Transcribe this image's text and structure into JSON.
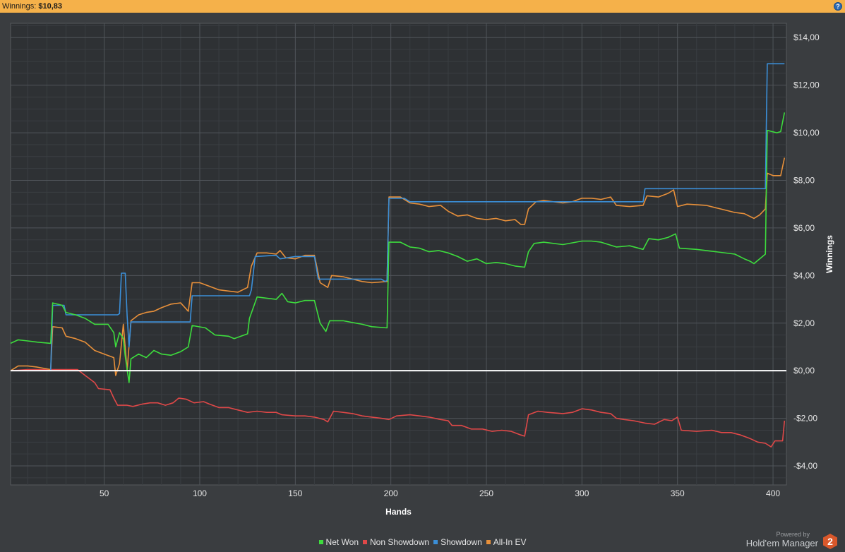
{
  "header": {
    "winnings_label": "Winnings:",
    "winnings_value": "$10,83",
    "help_glyph": "?"
  },
  "colors": {
    "header_bg": "#f5b14a",
    "plot_bg": "#2e3134",
    "zero_line": "#ffffff",
    "net_won": "#3ddc3d",
    "non_showdown": "#e04848",
    "showdown": "#3b8fd8",
    "all_in_ev": "#e8903a"
  },
  "chart_data": {
    "type": "line",
    "xlabel": "Hands",
    "ylabel": "Winnings",
    "xlim": [
      1,
      407
    ],
    "ylim": [
      -4.8,
      14.6
    ],
    "x_ticks": [
      50,
      100,
      150,
      200,
      250,
      300,
      350,
      400
    ],
    "y_ticks": [
      {
        "value": 14,
        "label": "$14,00"
      },
      {
        "value": 12,
        "label": "$12,00"
      },
      {
        "value": 10,
        "label": "$10,00"
      },
      {
        "value": 8,
        "label": "$8,00"
      },
      {
        "value": 6,
        "label": "$6,00"
      },
      {
        "value": 4,
        "label": "$4,00"
      },
      {
        "value": 2,
        "label": "$2,00"
      },
      {
        "value": 0,
        "label": "$0,00"
      },
      {
        "value": -2,
        "label": "-$2,00"
      },
      {
        "value": -4,
        "label": "-$4,00"
      }
    ],
    "y_axis_side": "right",
    "grid": true,
    "legend": "bottom",
    "series": [
      {
        "name": "Net Won",
        "color": "#3ddc3d",
        "points": [
          [
            1,
            1.15
          ],
          [
            5,
            1.3
          ],
          [
            10,
            1.25
          ],
          [
            15,
            1.2
          ],
          [
            22,
            1.15
          ],
          [
            23,
            2.85
          ],
          [
            28,
            2.75
          ],
          [
            30,
            2.45
          ],
          [
            35,
            2.35
          ],
          [
            40,
            2.2
          ],
          [
            45,
            1.95
          ],
          [
            52,
            1.95
          ],
          [
            55,
            1.6
          ],
          [
            56,
            1.0
          ],
          [
            58,
            1.6
          ],
          [
            60,
            1.35
          ],
          [
            61,
            0.6
          ],
          [
            63,
            -0.5
          ],
          [
            64,
            0.5
          ],
          [
            68,
            0.7
          ],
          [
            72,
            0.55
          ],
          [
            76,
            0.85
          ],
          [
            80,
            0.7
          ],
          [
            85,
            0.65
          ],
          [
            90,
            0.8
          ],
          [
            94,
            1.0
          ],
          [
            96,
            1.9
          ],
          [
            103,
            1.8
          ],
          [
            108,
            1.5
          ],
          [
            115,
            1.45
          ],
          [
            118,
            1.35
          ],
          [
            125,
            1.55
          ],
          [
            126,
            2.2
          ],
          [
            130,
            3.1
          ],
          [
            135,
            3.05
          ],
          [
            140,
            3.0
          ],
          [
            143,
            3.25
          ],
          [
            146,
            2.9
          ],
          [
            150,
            2.85
          ],
          [
            155,
            2.95
          ],
          [
            160,
            2.95
          ],
          [
            163,
            2.0
          ],
          [
            166,
            1.65
          ],
          [
            168,
            2.1
          ],
          [
            175,
            2.1
          ],
          [
            185,
            1.95
          ],
          [
            190,
            1.85
          ],
          [
            198,
            1.8
          ],
          [
            199,
            5.4
          ],
          [
            205,
            5.4
          ],
          [
            210,
            5.2
          ],
          [
            215,
            5.15
          ],
          [
            220,
            5.0
          ],
          [
            225,
            5.05
          ],
          [
            230,
            4.95
          ],
          [
            235,
            4.8
          ],
          [
            240,
            4.6
          ],
          [
            245,
            4.7
          ],
          [
            250,
            4.5
          ],
          [
            255,
            4.55
          ],
          [
            260,
            4.5
          ],
          [
            265,
            4.4
          ],
          [
            270,
            4.35
          ],
          [
            272,
            5.0
          ],
          [
            275,
            5.35
          ],
          [
            280,
            5.4
          ],
          [
            290,
            5.3
          ],
          [
            300,
            5.45
          ],
          [
            305,
            5.45
          ],
          [
            310,
            5.4
          ],
          [
            318,
            5.2
          ],
          [
            325,
            5.25
          ],
          [
            332,
            5.1
          ],
          [
            335,
            5.55
          ],
          [
            340,
            5.5
          ],
          [
            345,
            5.6
          ],
          [
            349,
            5.75
          ],
          [
            351,
            5.15
          ],
          [
            360,
            5.1
          ],
          [
            370,
            5.0
          ],
          [
            380,
            4.9
          ],
          [
            385,
            4.7
          ],
          [
            388,
            4.6
          ],
          [
            390,
            4.5
          ],
          [
            393,
            4.7
          ],
          [
            396,
            4.9
          ],
          [
            397,
            10.1
          ],
          [
            402,
            10.0
          ],
          [
            404,
            10.05
          ],
          [
            406,
            10.85
          ]
        ]
      },
      {
        "name": "Non Showdown",
        "color": "#e04848",
        "points": [
          [
            1,
            0.0
          ],
          [
            10,
            0.05
          ],
          [
            20,
            0.05
          ],
          [
            30,
            0.05
          ],
          [
            36,
            0.05
          ],
          [
            40,
            -0.2
          ],
          [
            45,
            -0.5
          ],
          [
            47,
            -0.75
          ],
          [
            53,
            -0.8
          ],
          [
            55,
            -1.15
          ],
          [
            57,
            -1.45
          ],
          [
            62,
            -1.45
          ],
          [
            65,
            -1.5
          ],
          [
            70,
            -1.4
          ],
          [
            74,
            -1.35
          ],
          [
            78,
            -1.35
          ],
          [
            82,
            -1.45
          ],
          [
            86,
            -1.35
          ],
          [
            89,
            -1.15
          ],
          [
            93,
            -1.2
          ],
          [
            97,
            -1.35
          ],
          [
            102,
            -1.3
          ],
          [
            105,
            -1.4
          ],
          [
            110,
            -1.55
          ],
          [
            115,
            -1.55
          ],
          [
            120,
            -1.65
          ],
          [
            125,
            -1.75
          ],
          [
            130,
            -1.7
          ],
          [
            135,
            -1.75
          ],
          [
            140,
            -1.75
          ],
          [
            143,
            -1.85
          ],
          [
            150,
            -1.9
          ],
          [
            155,
            -1.9
          ],
          [
            160,
            -1.95
          ],
          [
            165,
            -2.05
          ],
          [
            167,
            -2.15
          ],
          [
            170,
            -1.7
          ],
          [
            175,
            -1.75
          ],
          [
            180,
            -1.8
          ],
          [
            185,
            -1.9
          ],
          [
            190,
            -1.95
          ],
          [
            195,
            -2.0
          ],
          [
            199,
            -2.05
          ],
          [
            203,
            -1.9
          ],
          [
            210,
            -1.85
          ],
          [
            215,
            -1.9
          ],
          [
            220,
            -1.95
          ],
          [
            226,
            -2.05
          ],
          [
            230,
            -2.1
          ],
          [
            232,
            -2.3
          ],
          [
            237,
            -2.3
          ],
          [
            242,
            -2.45
          ],
          [
            248,
            -2.45
          ],
          [
            253,
            -2.55
          ],
          [
            258,
            -2.5
          ],
          [
            263,
            -2.55
          ],
          [
            268,
            -2.7
          ],
          [
            270,
            -2.75
          ],
          [
            272,
            -1.85
          ],
          [
            277,
            -1.7
          ],
          [
            282,
            -1.75
          ],
          [
            290,
            -1.8
          ],
          [
            295,
            -1.75
          ],
          [
            300,
            -1.6
          ],
          [
            305,
            -1.65
          ],
          [
            310,
            -1.75
          ],
          [
            315,
            -1.8
          ],
          [
            318,
            -2.0
          ],
          [
            322,
            -2.05
          ],
          [
            327,
            -2.1
          ],
          [
            333,
            -2.2
          ],
          [
            338,
            -2.25
          ],
          [
            343,
            -2.05
          ],
          [
            347,
            -2.1
          ],
          [
            350,
            -1.95
          ],
          [
            352,
            -2.5
          ],
          [
            360,
            -2.55
          ],
          [
            368,
            -2.5
          ],
          [
            373,
            -2.6
          ],
          [
            378,
            -2.6
          ],
          [
            383,
            -2.7
          ],
          [
            388,
            -2.85
          ],
          [
            392,
            -3.0
          ],
          [
            396,
            -3.05
          ],
          [
            399,
            -3.2
          ],
          [
            401,
            -2.95
          ],
          [
            405,
            -2.95
          ],
          [
            406,
            -2.1
          ]
        ]
      },
      {
        "name": "Showdown",
        "color": "#3b8fd8",
        "points": [
          [
            1,
            0.0
          ],
          [
            22,
            0.0
          ],
          [
            23,
            2.75
          ],
          [
            29,
            2.75
          ],
          [
            30,
            2.35
          ],
          [
            57,
            2.35
          ],
          [
            58,
            2.4
          ],
          [
            59,
            4.1
          ],
          [
            61,
            4.1
          ],
          [
            62,
            2.3
          ],
          [
            63,
            1.0
          ],
          [
            64,
            2.05
          ],
          [
            95,
            2.05
          ],
          [
            96,
            3.15
          ],
          [
            126,
            3.15
          ],
          [
            127,
            3.4
          ],
          [
            129,
            4.8
          ],
          [
            140,
            4.85
          ],
          [
            142,
            4.7
          ],
          [
            150,
            4.8
          ],
          [
            160,
            4.8
          ],
          [
            162,
            3.85
          ],
          [
            195,
            3.85
          ],
          [
            197,
            3.75
          ],
          [
            198,
            3.8
          ],
          [
            199,
            7.25
          ],
          [
            207,
            7.25
          ],
          [
            210,
            7.1
          ],
          [
            332,
            7.1
          ],
          [
            333,
            7.65
          ],
          [
            396,
            7.65
          ],
          [
            397,
            12.9
          ],
          [
            406,
            12.9
          ]
        ]
      },
      {
        "name": "All-In EV",
        "color": "#e8903a",
        "points": [
          [
            1,
            0.0
          ],
          [
            5,
            0.2
          ],
          [
            10,
            0.2
          ],
          [
            15,
            0.15
          ],
          [
            22,
            0.05
          ],
          [
            23,
            1.85
          ],
          [
            28,
            1.8
          ],
          [
            30,
            1.45
          ],
          [
            35,
            1.35
          ],
          [
            40,
            1.2
          ],
          [
            45,
            0.85
          ],
          [
            50,
            0.7
          ],
          [
            55,
            0.55
          ],
          [
            56,
            -0.2
          ],
          [
            58,
            0.3
          ],
          [
            60,
            1.95
          ],
          [
            62,
            0.0
          ],
          [
            64,
            2.1
          ],
          [
            68,
            2.35
          ],
          [
            72,
            2.45
          ],
          [
            76,
            2.5
          ],
          [
            80,
            2.65
          ],
          [
            85,
            2.8
          ],
          [
            90,
            2.85
          ],
          [
            94,
            2.5
          ],
          [
            96,
            3.7
          ],
          [
            100,
            3.7
          ],
          [
            105,
            3.55
          ],
          [
            110,
            3.4
          ],
          [
            115,
            3.35
          ],
          [
            120,
            3.3
          ],
          [
            125,
            3.5
          ],
          [
            127,
            4.4
          ],
          [
            130,
            4.95
          ],
          [
            135,
            4.95
          ],
          [
            140,
            4.9
          ],
          [
            142,
            5.05
          ],
          [
            145,
            4.75
          ],
          [
            150,
            4.7
          ],
          [
            155,
            4.85
          ],
          [
            160,
            4.85
          ],
          [
            163,
            3.7
          ],
          [
            167,
            3.5
          ],
          [
            169,
            4.0
          ],
          [
            175,
            3.95
          ],
          [
            180,
            3.85
          ],
          [
            185,
            3.75
          ],
          [
            190,
            3.7
          ],
          [
            198,
            3.75
          ],
          [
            199,
            7.3
          ],
          [
            205,
            7.3
          ],
          [
            210,
            7.05
          ],
          [
            215,
            7.0
          ],
          [
            220,
            6.9
          ],
          [
            226,
            6.95
          ],
          [
            230,
            6.7
          ],
          [
            235,
            6.5
          ],
          [
            240,
            6.55
          ],
          [
            245,
            6.4
          ],
          [
            250,
            6.35
          ],
          [
            255,
            6.4
          ],
          [
            260,
            6.3
          ],
          [
            265,
            6.35
          ],
          [
            268,
            6.15
          ],
          [
            270,
            6.15
          ],
          [
            272,
            6.8
          ],
          [
            276,
            7.1
          ],
          [
            280,
            7.15
          ],
          [
            290,
            7.05
          ],
          [
            295,
            7.1
          ],
          [
            300,
            7.25
          ],
          [
            305,
            7.25
          ],
          [
            310,
            7.2
          ],
          [
            315,
            7.3
          ],
          [
            318,
            6.95
          ],
          [
            325,
            6.9
          ],
          [
            332,
            6.95
          ],
          [
            334,
            7.35
          ],
          [
            340,
            7.3
          ],
          [
            345,
            7.45
          ],
          [
            348,
            7.6
          ],
          [
            350,
            6.9
          ],
          [
            355,
            7.0
          ],
          [
            365,
            6.95
          ],
          [
            370,
            6.85
          ],
          [
            375,
            6.75
          ],
          [
            380,
            6.65
          ],
          [
            385,
            6.6
          ],
          [
            390,
            6.4
          ],
          [
            393,
            6.55
          ],
          [
            396,
            6.8
          ],
          [
            397,
            8.3
          ],
          [
            400,
            8.2
          ],
          [
            404,
            8.2
          ],
          [
            406,
            8.95
          ]
        ]
      }
    ]
  },
  "branding": {
    "powered_by": "Powered by",
    "product": "Hold'em Manager",
    "logo_glyph": "2"
  }
}
